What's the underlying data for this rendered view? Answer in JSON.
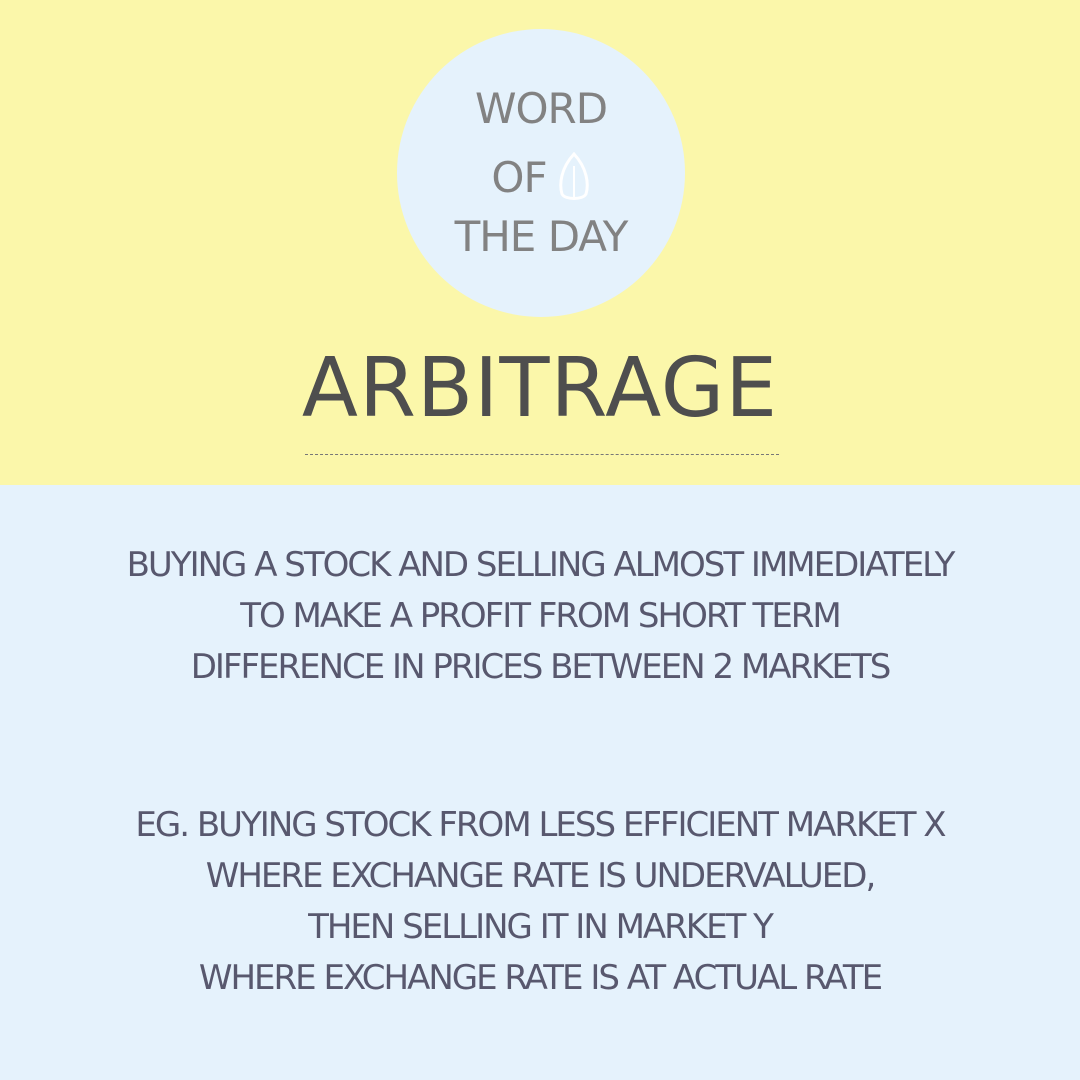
{
  "colors": {
    "top_background": "#fbf7aa",
    "bottom_background": "#e5f2fc",
    "badge_background": "#e5f2fc",
    "badge_text": "#828282",
    "title_text": "#4e4e4e",
    "body_text": "#58586e"
  },
  "badge": {
    "line1": "WORD",
    "line2": "OF",
    "line3": "THE DAY",
    "icon": "leaf-icon"
  },
  "title": "ARBITRAGE",
  "definition": {
    "lines": [
      "BUYING A STOCK AND SELLING ALMOST IMMEDIATELY",
      "TO MAKE A PROFIT FROM SHORT TERM",
      "DIFFERENCE IN PRICES BETWEEN 2 MARKETS"
    ]
  },
  "example": {
    "lines": [
      "EG. BUYING STOCK FROM LESS EFFICIENT MARKET X",
      "WHERE EXCHANGE RATE IS UNDERVALUED,",
      "THEN SELLING IT IN MARKET Y",
      "WHERE EXCHANGE RATE IS AT ACTUAL RATE"
    ]
  }
}
